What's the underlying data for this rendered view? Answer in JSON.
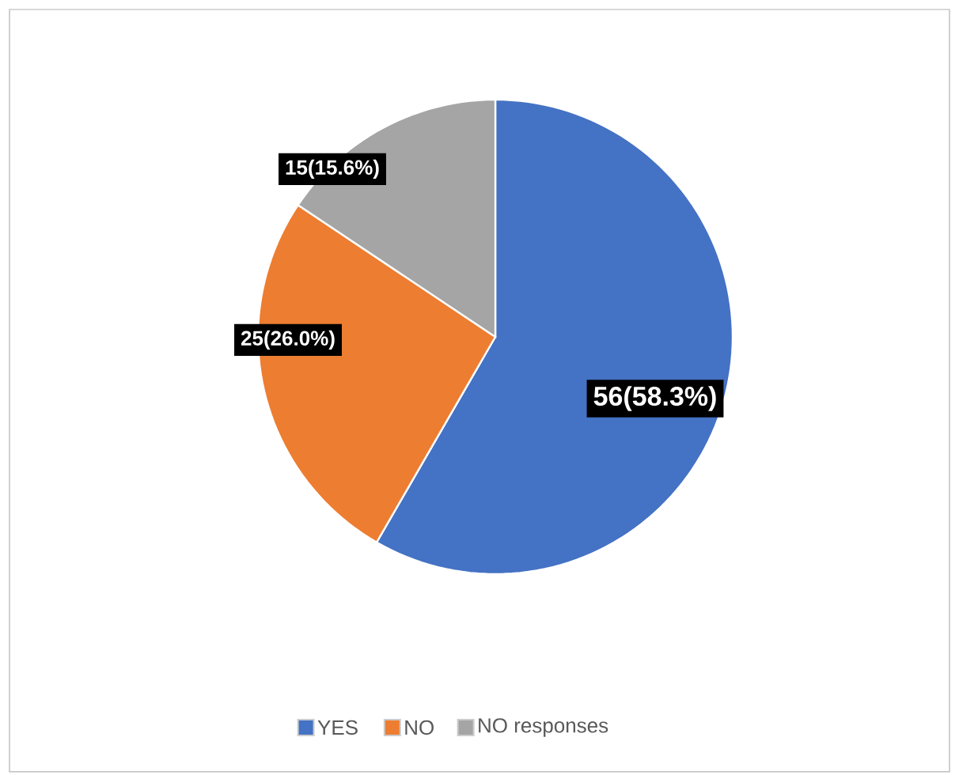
{
  "chart_data": {
    "type": "pie",
    "categories": [
      "YES",
      "NO",
      "NO responses"
    ],
    "values": [
      56,
      25,
      15
    ],
    "colors": [
      "#4472c4",
      "#ed7d31",
      "#a5a5a5"
    ],
    "value_labels": [
      "56(58.3%)",
      "25(26.0%)",
      "15(15.6%)"
    ],
    "legend": "bottom"
  }
}
